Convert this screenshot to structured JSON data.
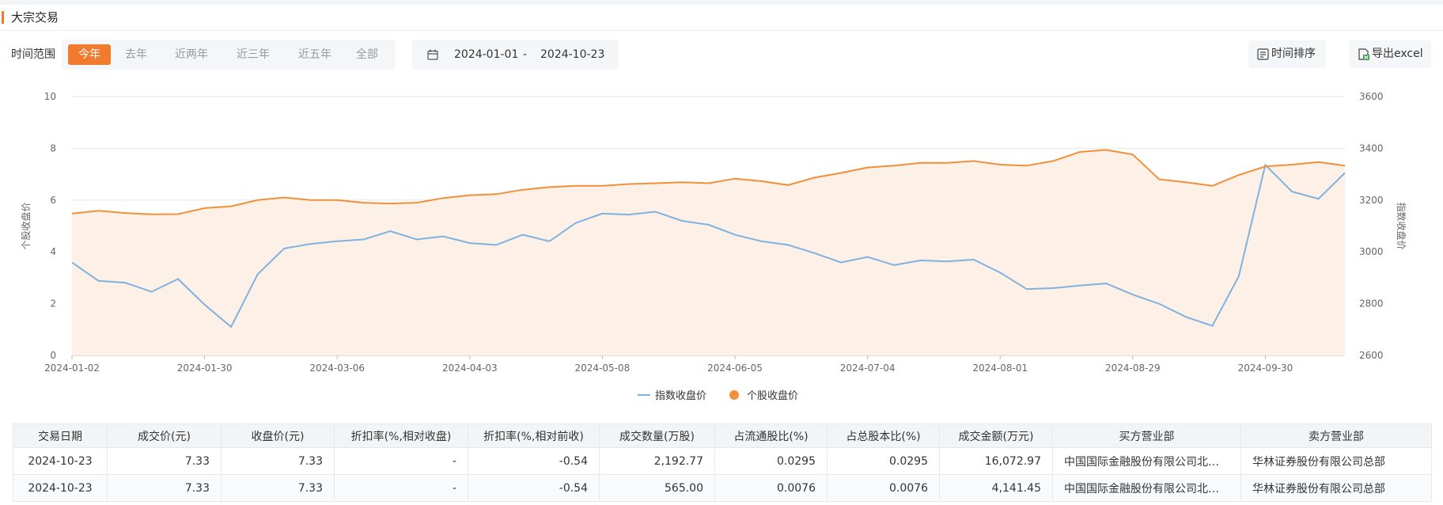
{
  "header": {
    "title": "大宗交易"
  },
  "filters": {
    "label": "时间范围",
    "options": [
      "今年",
      "去年",
      "近两年",
      "近三年",
      "近五年",
      "全部"
    ],
    "active": 0
  },
  "date_range": {
    "start": "2024-01-01",
    "separator": "-",
    "end": "2024-10-23"
  },
  "buttons": [
    "时间排序",
    "导出excel"
  ],
  "chart_data": {
    "type": "line",
    "y_label": "个股收盘价",
    "y2_label": "指数收盘价",
    "categories": [
      "2024-01-02",
      null,
      null,
      null,
      null,
      "2024-01-30",
      null,
      null,
      null,
      null,
      "2024-03-06",
      null,
      null,
      null,
      null,
      "2024-04-03",
      null,
      null,
      null,
      null,
      "2024-05-08",
      null,
      null,
      null,
      null,
      "2024-06-05",
      null,
      null,
      null,
      null,
      "2024-07-04",
      null,
      null,
      null,
      null,
      "2024-08-01",
      null,
      null,
      null,
      null,
      "2024-08-29",
      null,
      null,
      null,
      null,
      "2024-09-30",
      null,
      null,
      null
    ],
    "series": [
      {
        "name": "指数收盘价",
        "color": "#7fb2df",
        "axis": "y2",
        "values": [
          2959,
          2888,
          2881,
          2846,
          2895,
          2796,
          2710,
          2913,
          3013,
          3031,
          3041,
          3048,
          3080,
          3048,
          3060,
          3034,
          3027,
          3066,
          3041,
          3112,
          3148,
          3144,
          3155,
          3120,
          3105,
          3066,
          3041,
          3027,
          2995,
          2959,
          2980,
          2949,
          2967,
          2963,
          2970,
          2920,
          2856,
          2860,
          2870,
          2878,
          2835,
          2799,
          2749,
          2714,
          2906,
          3336,
          3233,
          3205,
          3305
        ]
      },
      {
        "name": "个股收盘价",
        "color": "#f0903a",
        "fill": "#fdf0e6",
        "values": [
          5.48,
          5.59,
          5.5,
          5.45,
          5.46,
          5.69,
          5.76,
          6.0,
          6.1,
          6.0,
          6.0,
          5.9,
          5.87,
          5.9,
          6.08,
          6.19,
          6.23,
          6.4,
          6.5,
          6.55,
          6.55,
          6.62,
          6.65,
          6.69,
          6.65,
          6.83,
          6.73,
          6.58,
          6.87,
          7.05,
          7.26,
          7.33,
          7.44,
          7.44,
          7.51,
          7.37,
          7.33,
          7.51,
          7.86,
          7.94,
          7.76,
          6.8,
          6.69,
          6.55,
          6.97,
          7.3,
          7.37,
          7.47,
          7.33
        ]
      }
    ],
    "ylim": [
      0,
      10
    ],
    "yticks": [
      0,
      2,
      4,
      6,
      8,
      10
    ],
    "y2lim": [
      2600,
      3600
    ],
    "y2ticks": [
      2600,
      2800,
      3000,
      3200,
      3400,
      3600
    ],
    "grid": true
  },
  "table": {
    "columns": [
      "交易日期",
      "成交价(元)",
      "收盘价(元)",
      "折扣率(%,相对收盘)",
      "折扣率(%,相对前收)",
      "成交数量(万股)",
      "占流通股比(%)",
      "占总股本比(%)",
      "成交金额(万元)",
      "买方营业部",
      "卖方营业部"
    ],
    "rows": [
      [
        "2024-10-23",
        "7.33",
        "7.33",
        "-",
        "-0.54",
        "2,192.77",
        "0.0295",
        "0.0295",
        "16,072.97",
        "中国国际金融股份有限公司北…",
        "华林证券股份有限公司总部"
      ],
      [
        "2024-10-23",
        "7.33",
        "7.33",
        "-",
        "-0.54",
        "565.00",
        "0.0076",
        "0.0076",
        "4,141.45",
        "中国国际金融股份有限公司北…",
        "华林证券股份有限公司总部"
      ]
    ]
  }
}
